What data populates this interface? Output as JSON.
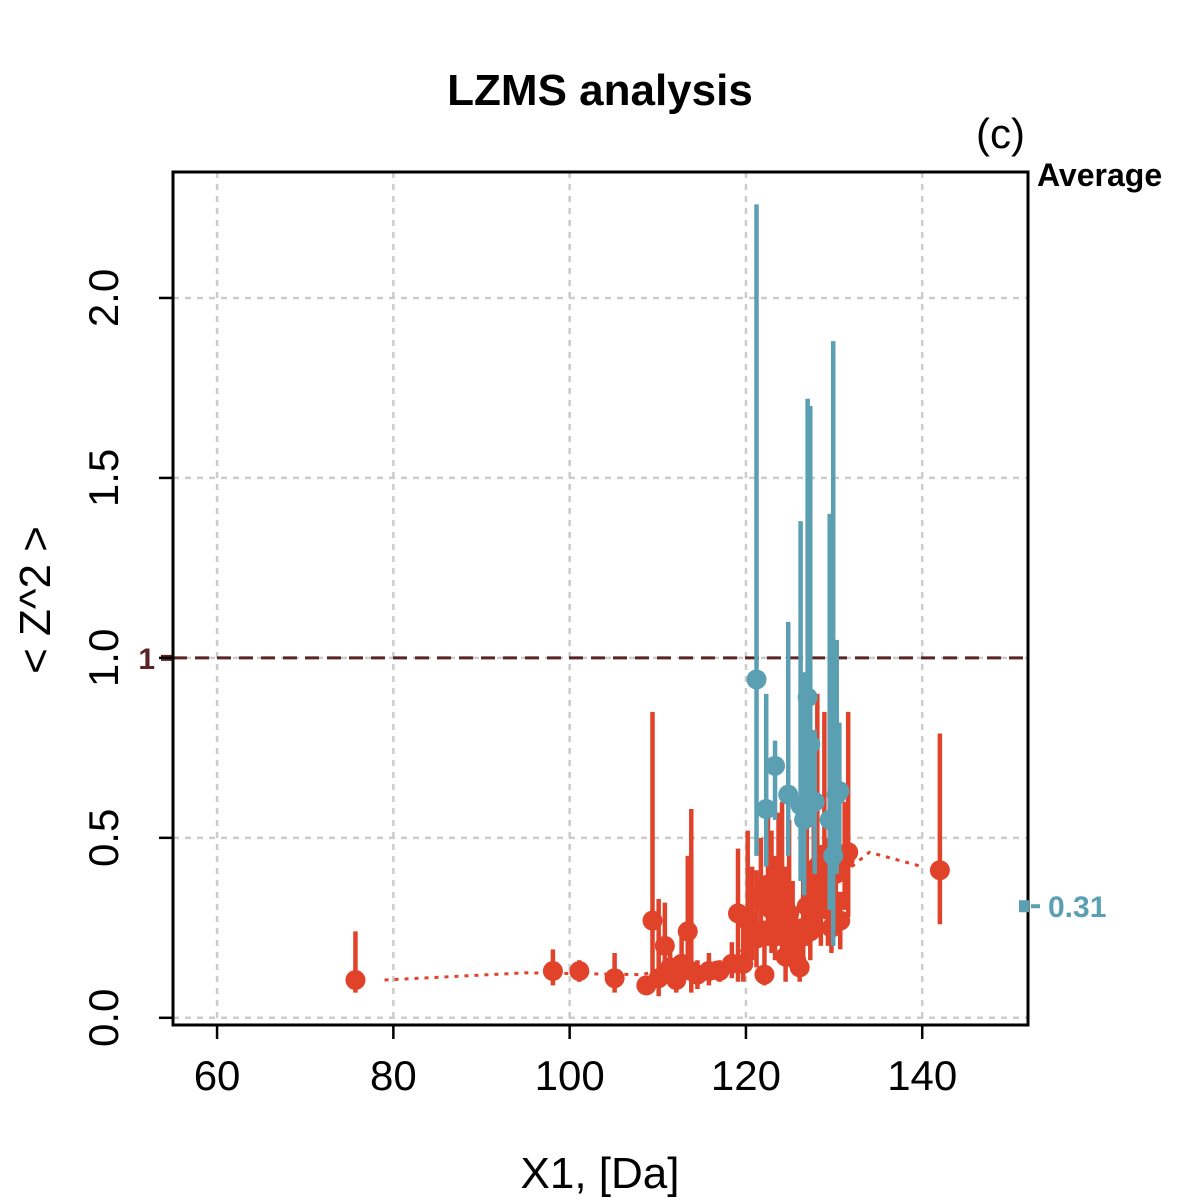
{
  "chart_data": {
    "type": "scatter",
    "title": "LZMS analysis",
    "panel_label": "(c)",
    "xlabel": "X1, [Da]",
    "ylabel": "< Z^2 >",
    "xlim": [
      55,
      152
    ],
    "ylim": [
      -0.02,
      2.35
    ],
    "x_ticks": [
      60,
      80,
      100,
      120,
      140
    ],
    "y_ticks": [
      0.0,
      0.5,
      1.0,
      1.5,
      2.0
    ],
    "x_tick_labels": [
      "60",
      "80",
      "100",
      "120",
      "140"
    ],
    "y_tick_labels": [
      "0.0",
      "0.5",
      "1.0",
      "1.5",
      "2.0"
    ],
    "grid": true,
    "reference_line": {
      "y": 1,
      "label": "1",
      "color": "#5a2424"
    },
    "average": {
      "heading": "Average",
      "value": 0.31,
      "label": "0.31",
      "color": "#5b9fb2"
    },
    "colors": {
      "red": "#e0432a",
      "teal": "#5b9fb2",
      "grid": "#cccccc"
    },
    "trend_line": {
      "color": "#e0432a",
      "x": [
        79,
        95,
        108,
        118,
        126,
        134,
        140
      ],
      "y": [
        0.105,
        0.125,
        0.12,
        0.16,
        0.3,
        0.46,
        0.42
      ]
    },
    "series": [
      {
        "color": "#e0432a",
        "points": [
          [
            75.7,
            0.105,
            0.07,
            0.24
          ],
          [
            98.1,
            0.13,
            0.09,
            0.19
          ],
          [
            101.1,
            0.13,
            0.1,
            0.16
          ],
          [
            105.1,
            0.11,
            0.07,
            0.18
          ],
          [
            108.7,
            0.09,
            0.07,
            0.11
          ],
          [
            109.4,
            0.27,
            0.12,
            0.85
          ],
          [
            110.1,
            0.11,
            0.06,
            0.33
          ],
          [
            110.8,
            0.2,
            0.12,
            0.32
          ],
          [
            111.4,
            0.14,
            0.09,
            0.21
          ],
          [
            112.1,
            0.105,
            0.07,
            0.16
          ],
          [
            112.7,
            0.15,
            0.1,
            0.24
          ],
          [
            113.4,
            0.24,
            0.12,
            0.45
          ],
          [
            113.8,
            0.13,
            0.07,
            0.58
          ],
          [
            114.5,
            0.12,
            0.08,
            0.16
          ],
          [
            115.8,
            0.13,
            0.09,
            0.18
          ],
          [
            117.0,
            0.13,
            0.1,
            0.16
          ],
          [
            118.4,
            0.15,
            0.11,
            0.21
          ],
          [
            119.1,
            0.29,
            0.1,
            0.47
          ],
          [
            119.7,
            0.15,
            0.1,
            0.3
          ],
          [
            120.2,
            0.27,
            0.15,
            0.52
          ],
          [
            120.7,
            0.24,
            0.16,
            0.42
          ],
          [
            121.2,
            0.22,
            0.14,
            0.41
          ],
          [
            121.7,
            0.33,
            0.2,
            0.5
          ],
          [
            122.1,
            0.12,
            0.09,
            0.27
          ],
          [
            122.5,
            0.37,
            0.2,
            0.56
          ],
          [
            122.9,
            0.3,
            0.18,
            0.52
          ],
          [
            123.3,
            0.26,
            0.16,
            0.45
          ],
          [
            123.7,
            0.39,
            0.2,
            0.57
          ],
          [
            124.1,
            0.33,
            0.16,
            0.6
          ],
          [
            124.5,
            0.17,
            0.1,
            0.42
          ],
          [
            124.9,
            0.29,
            0.15,
            0.55
          ],
          [
            125.3,
            0.22,
            0.14,
            0.38
          ],
          [
            125.7,
            0.16,
            0.12,
            0.3
          ],
          [
            126.1,
            0.14,
            0.1,
            0.23
          ],
          [
            126.5,
            0.25,
            0.16,
            0.52
          ],
          [
            126.9,
            0.31,
            0.2,
            0.6
          ],
          [
            127.3,
            0.24,
            0.16,
            0.42
          ],
          [
            127.7,
            0.38,
            0.22,
            0.62
          ],
          [
            128.1,
            0.42,
            0.25,
            0.9
          ],
          [
            128.5,
            0.33,
            0.2,
            0.48
          ],
          [
            128.9,
            0.45,
            0.3,
            0.85
          ],
          [
            129.3,
            0.3,
            0.2,
            0.5
          ],
          [
            129.7,
            0.25,
            0.18,
            0.38
          ],
          [
            130.2,
            0.4,
            0.26,
            0.58
          ],
          [
            130.7,
            0.27,
            0.19,
            0.35
          ],
          [
            131.2,
            0.44,
            0.3,
            0.6
          ],
          [
            131.6,
            0.46,
            0.28,
            0.85
          ],
          [
            142.0,
            0.41,
            0.26,
            0.79
          ]
        ]
      },
      {
        "color": "#5b9fb2",
        "points": [
          [
            121.2,
            0.94,
            0.45,
            2.26
          ],
          [
            122.3,
            0.58,
            0.42,
            0.9
          ],
          [
            123.3,
            0.7,
            0.55,
            0.77
          ],
          [
            124.8,
            0.62,
            0.45,
            1.1
          ],
          [
            126.2,
            0.59,
            0.38,
            1.38
          ],
          [
            126.6,
            0.55,
            0.34,
            0.96
          ],
          [
            127.0,
            0.89,
            0.55,
            1.72
          ],
          [
            127.3,
            0.76,
            0.55,
            1.7
          ],
          [
            127.8,
            0.6,
            0.4,
            0.8
          ],
          [
            129.5,
            0.55,
            0.3,
            1.4
          ],
          [
            129.9,
            0.45,
            0.2,
            1.88
          ],
          [
            130.3,
            0.62,
            0.4,
            1.05
          ],
          [
            130.6,
            0.63,
            0.45,
            0.82
          ]
        ]
      }
    ]
  }
}
